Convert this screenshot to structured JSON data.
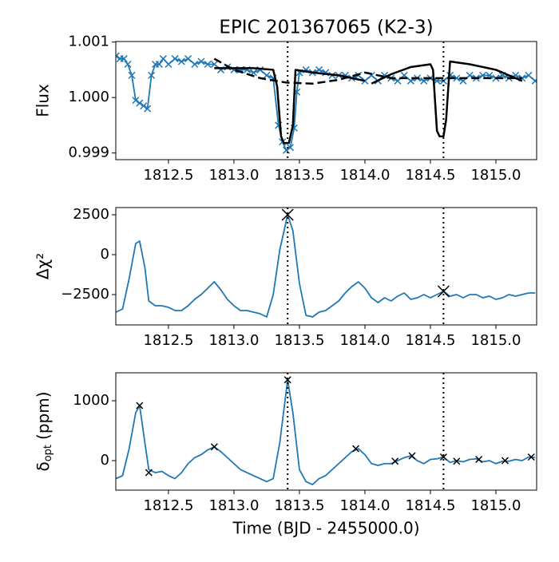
{
  "chart_data": [
    {
      "type": "line",
      "title": "EPIC 201367065 (K2-3)",
      "ylabel": "Flux",
      "xlim": [
        1812.098,
        1815.311
      ],
      "ylim": [
        0.99888,
        1.00101
      ],
      "xticks": [
        1812.5,
        {
          "value": 1813.0,
          "label": "1813.0"
        },
        1813.5,
        {
          "value": 1814.0,
          "label": "1814.0"
        },
        1814.5,
        {
          "value": 1815.0,
          "label": "1815.0"
        }
      ],
      "yticks": [
        0.999,
        {
          "value": 1.0,
          "label": "1.000"
        },
        1.001
      ],
      "vlines": [
        1813.41,
        1814.6
      ],
      "series": [
        {
          "color": "#1f77b4",
          "style": "solid",
          "marker": "x",
          "x": [
            1812.1,
            1812.13,
            1812.16,
            1812.19,
            1812.22,
            1812.25,
            1812.28,
            1812.31,
            1812.34,
            1812.37,
            1812.4,
            1812.43,
            1812.46,
            1812.5,
            1812.55,
            1812.6,
            1812.65,
            1812.7,
            1812.75,
            1812.8,
            1812.85,
            1812.9,
            1812.95,
            1813.0,
            1813.05,
            1813.1,
            1813.15,
            1813.2,
            1813.25,
            1813.3,
            1813.34,
            1813.37,
            1813.4,
            1813.43,
            1813.46,
            1813.48,
            1813.5,
            1813.55,
            1813.6,
            1813.65,
            1813.7,
            1813.75,
            1813.8,
            1813.85,
            1813.9,
            1813.95,
            1814.0,
            1814.05,
            1814.1,
            1814.15,
            1814.2,
            1814.25,
            1814.3,
            1814.35,
            1814.4,
            1814.45,
            1814.5,
            1814.55,
            1814.6,
            1814.65,
            1814.7,
            1814.75,
            1814.8,
            1814.85,
            1814.9,
            1814.95,
            1815.0,
            1815.05,
            1815.1,
            1815.15,
            1815.2,
            1815.25,
            1815.3
          ],
          "values": [
            1.00075,
            1.0007,
            1.0007,
            1.0006,
            1.0004,
            0.99995,
            0.9999,
            0.99985,
            0.9998,
            1.0004,
            1.0006,
            1.0006,
            1.0007,
            1.0006,
            1.0007,
            1.00065,
            1.0007,
            1.0006,
            1.00065,
            1.0006,
            1.0006,
            1.0005,
            1.00055,
            1.0005,
            1.0005,
            1.0005,
            1.00045,
            1.0005,
            1.0004,
            1.00035,
            0.9995,
            0.9992,
            0.99905,
            0.9991,
            0.99945,
            1.0001,
            1.00045,
            1.0005,
            1.00045,
            1.0005,
            1.00045,
            1.0004,
            1.0004,
            1.0004,
            1.00035,
            1.0004,
            1.0003,
            1.0004,
            1.0003,
            1.0004,
            1.00035,
            1.0003,
            1.0004,
            1.0003,
            1.00035,
            1.0003,
            1.00035,
            1.0003,
            1.0003,
            1.0004,
            1.00035,
            1.0003,
            1.0004,
            1.00035,
            1.0004,
            1.0004,
            1.00035,
            1.0004,
            1.00035,
            1.0004,
            1.00035,
            1.0004,
            1.0003
          ]
        },
        {
          "color": "#000000",
          "style": "solid",
          "width": 2.5,
          "x": [
            1812.85,
            1813.0,
            1813.15,
            1813.3,
            1813.33,
            1813.36,
            1813.38,
            1813.42,
            1813.45,
            1813.47,
            1813.6,
            1813.8,
            1814.0,
            1814.02,
            1814.05,
            1814.2,
            1814.35,
            1814.5,
            1814.52,
            1814.55,
            1814.57,
            1814.6,
            1814.62,
            1814.65,
            1814.8,
            1815.0,
            1815.2
          ],
          "values": [
            1.00053,
            1.00053,
            1.00053,
            1.0005,
            1.0002,
            0.9993,
            0.99918,
            0.99918,
            0.9995,
            1.0005,
            1.00045,
            1.0004,
            1.0003,
            null,
            1.00025,
            1.00042,
            1.00055,
            1.0006,
            1.0005,
            0.9994,
            0.9993,
            0.9993,
            0.9996,
            1.00065,
            1.0006,
            1.0005,
            1.0003
          ]
        },
        {
          "color": "#000000",
          "style": "dashed",
          "width": 2.5,
          "x": [
            1812.85,
            1813.0,
            1813.2,
            1813.4,
            1813.6,
            1813.8,
            1814.0,
            1814.2,
            1814.4,
            1814.6,
            1814.8,
            1815.0,
            1815.2
          ],
          "values": [
            1.0007,
            1.0005,
            1.00035,
            1.00027,
            1.00025,
            1.00032,
            1.00045,
            1.00035,
            1.00035,
            1.00035,
            1.00035,
            1.00035,
            1.00035
          ]
        }
      ]
    },
    {
      "type": "line",
      "ylabel": "Δχ²",
      "xlim": [
        1812.098,
        1815.311
      ],
      "ylim": [
        -4400,
        2950
      ],
      "xticks": [
        1812.5,
        {
          "value": 1813.0,
          "label": "1813.0"
        },
        1813.5,
        {
          "value": 1814.0,
          "label": "1814.0"
        },
        1814.5,
        {
          "value": 1815.0,
          "label": "1815.0"
        }
      ],
      "yticks": [
        {
          "value": -2500,
          "label": "−2500"
        },
        0,
        2500
      ],
      "vlines": [
        1813.41,
        1814.6
      ],
      "series": [
        {
          "color": "#1f77b4",
          "style": "solid",
          "x": [
            1812.1,
            1812.15,
            1812.2,
            1812.25,
            1812.28,
            1812.32,
            1812.35,
            1812.4,
            1812.45,
            1812.5,
            1812.55,
            1812.6,
            1812.65,
            1812.7,
            1812.75,
            1812.8,
            1812.85,
            1812.9,
            1812.95,
            1813.0,
            1813.05,
            1813.1,
            1813.15,
            1813.2,
            1813.25,
            1813.3,
            1813.35,
            1813.41,
            1813.45,
            1813.5,
            1813.55,
            1813.6,
            1813.65,
            1813.7,
            1813.75,
            1813.8,
            1813.85,
            1813.9,
            1813.95,
            1814.0,
            1814.05,
            1814.1,
            1814.15,
            1814.2,
            1814.25,
            1814.3,
            1814.35,
            1814.4,
            1814.45,
            1814.5,
            1814.55,
            1814.6,
            1814.65,
            1814.7,
            1814.75,
            1814.8,
            1814.85,
            1814.9,
            1814.95,
            1815.0,
            1815.05,
            1815.1,
            1815.15,
            1815.2,
            1815.25,
            1815.3
          ],
          "values": [
            -3600,
            -3400,
            -1500,
            700,
            850,
            -800,
            -2900,
            -3200,
            -3200,
            -3300,
            -3500,
            -3500,
            -3200,
            -2800,
            -2500,
            -2100,
            -1700,
            -2200,
            -2800,
            -3200,
            -3500,
            -3500,
            -3600,
            -3700,
            -3900,
            -2500,
            300,
            2500,
            1500,
            -1800,
            -3800,
            -3900,
            -3600,
            -3500,
            -3200,
            -2900,
            -2400,
            -2000,
            -1700,
            -2100,
            -2700,
            -3000,
            -2700,
            -2900,
            -2600,
            -2400,
            -2800,
            -2700,
            -2500,
            -2700,
            -2500,
            -2300,
            -2600,
            -2500,
            -2700,
            -2500,
            -2500,
            -2700,
            -2600,
            -2800,
            -2700,
            -2500,
            -2600,
            -2500,
            -2400,
            -2400
          ]
        },
        {
          "color": "#000000",
          "style": "none",
          "marker": "x",
          "markersize": 7,
          "x": [
            1813.41,
            1814.6
          ],
          "values": [
            2500,
            -2300
          ]
        }
      ]
    },
    {
      "type": "line",
      "ylabel_parts": [
        "δ",
        "opt",
        "(ppm)"
      ],
      "xlabel": "Time (BJD - 2455000.0)",
      "xlim": [
        1812.098,
        1815.311
      ],
      "ylim": [
        -493,
        1467
      ],
      "xticks": [
        1812.5,
        {
          "value": 1813.0,
          "label": "1813.0"
        },
        1813.5,
        {
          "value": 1814.0,
          "label": "1814.0"
        },
        1814.5,
        {
          "value": 1815.0,
          "label": "1815.0"
        }
      ],
      "yticks": [
        0,
        1000
      ],
      "vlines": [
        1813.41,
        1814.6
      ],
      "series": [
        {
          "color": "#1f77b4",
          "style": "solid",
          "x": [
            1812.1,
            1812.15,
            1812.2,
            1812.25,
            1812.28,
            1812.32,
            1812.35,
            1812.4,
            1812.45,
            1812.5,
            1812.55,
            1812.6,
            1812.65,
            1812.7,
            1812.75,
            1812.8,
            1812.85,
            1812.9,
            1812.95,
            1813.0,
            1813.05,
            1813.1,
            1813.15,
            1813.2,
            1813.25,
            1813.3,
            1813.35,
            1813.41,
            1813.45,
            1813.5,
            1813.55,
            1813.6,
            1813.65,
            1813.7,
            1813.75,
            1813.8,
            1813.85,
            1813.9,
            1813.95,
            1814.0,
            1814.05,
            1814.1,
            1814.15,
            1814.2,
            1814.25,
            1814.3,
            1814.35,
            1814.4,
            1814.45,
            1814.5,
            1814.55,
            1814.6,
            1814.65,
            1814.7,
            1814.75,
            1814.8,
            1814.85,
            1814.9,
            1814.95,
            1815.0,
            1815.05,
            1815.1,
            1815.15,
            1815.2,
            1815.25,
            1815.3
          ],
          "values": [
            -300,
            -250,
            200,
            800,
            920,
            300,
            -150,
            -200,
            -180,
            -250,
            -300,
            -200,
            -50,
            50,
            100,
            180,
            230,
            150,
            50,
            -50,
            -150,
            -200,
            -250,
            -300,
            -350,
            -300,
            300,
            1350,
            800,
            -150,
            -350,
            -400,
            -300,
            -250,
            -150,
            -50,
            50,
            150,
            200,
            100,
            -50,
            -80,
            -50,
            -50,
            0,
            50,
            80,
            0,
            -50,
            20,
            30,
            60,
            -30,
            0,
            -20,
            20,
            30,
            -20,
            0,
            -50,
            -10,
            -10,
            20,
            0,
            60,
            50
          ]
        },
        {
          "color": "#000000",
          "style": "none",
          "marker": "x",
          "markersize": 4,
          "x": [
            1812.28,
            1812.35,
            1812.85,
            1813.41,
            1813.93,
            1814.23,
            1814.36,
            1814.6,
            1814.7,
            1814.87,
            1815.07,
            1815.27
          ],
          "values": [
            920,
            -200,
            230,
            1350,
            200,
            -10,
            80,
            60,
            -10,
            20,
            0,
            60
          ]
        }
      ]
    }
  ]
}
